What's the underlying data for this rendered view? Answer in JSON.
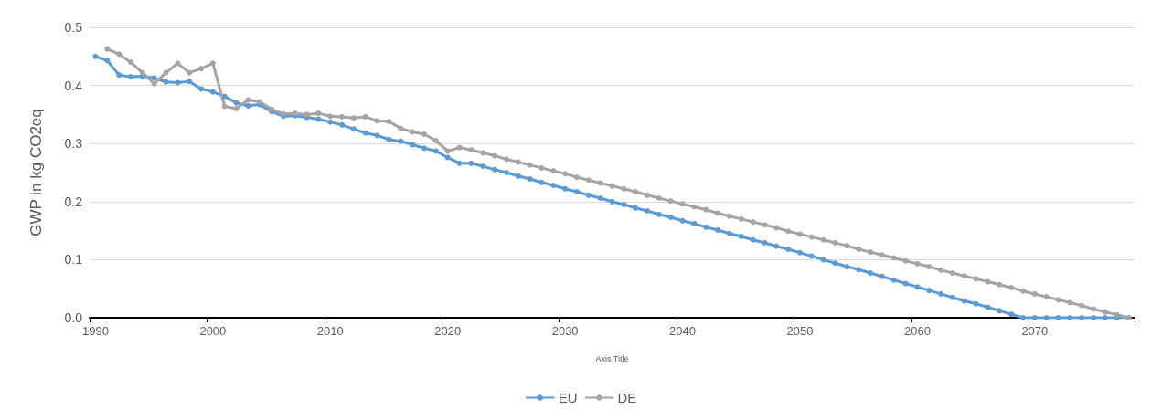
{
  "chart_data": {
    "type": "line",
    "xlabel": "Axis Title",
    "ylabel": "GWP in kg CO2eq",
    "categories": [
      "1990",
      null,
      null,
      null,
      null,
      null,
      null,
      null,
      null,
      null,
      "2000",
      null,
      null,
      null,
      null,
      null,
      null,
      null,
      null,
      null,
      "2010",
      null,
      null,
      null,
      null,
      null,
      null,
      null,
      null,
      null,
      "2020",
      null,
      null,
      null,
      null,
      null,
      null,
      null,
      null,
      null,
      "2030",
      null,
      null,
      null,
      null,
      null,
      null,
      null,
      null,
      null,
      "2040",
      null,
      null,
      null,
      null,
      null,
      null,
      null,
      null,
      null,
      "2050",
      null,
      null,
      null,
      null,
      null,
      null,
      null,
      null,
      null,
      "2060",
      null,
      null,
      null,
      null,
      null,
      null,
      null,
      null,
      null,
      "2070",
      null,
      null,
      null,
      null,
      null,
      null,
      null,
      null
    ],
    "series": [
      {
        "name": "EU",
        "color": "#5b9bd5",
        "values": [
          0.45,
          0.443,
          0.418,
          0.415,
          0.416,
          0.413,
          0.406,
          0.405,
          0.407,
          0.394,
          0.389,
          0.381,
          0.37,
          0.365,
          0.367,
          0.355,
          0.347,
          0.348,
          0.345,
          0.342,
          0.337,
          0.332,
          0.325,
          0.318,
          0.314,
          0.307,
          0.304,
          0.298,
          0.292,
          0.287,
          0.276,
          0.266,
          0.266,
          0.261,
          0.255,
          0.25,
          0.244,
          0.239,
          0.233,
          0.228,
          0.222,
          0.217,
          0.211,
          0.206,
          0.2,
          0.195,
          0.189,
          0.184,
          0.178,
          0.173,
          0.167,
          0.162,
          0.156,
          0.151,
          0.145,
          0.14,
          0.134,
          0.129,
          0.123,
          0.118,
          0.112,
          0.106,
          0.1,
          0.094,
          0.088,
          0.083,
          0.077,
          0.071,
          0.065,
          0.059,
          0.053,
          0.047,
          0.041,
          0.035,
          0.029,
          0.024,
          0.018,
          0.012,
          0.006,
          0,
          0,
          0,
          0,
          0,
          0,
          0,
          0,
          0,
          0
        ]
      },
      {
        "name": "DE",
        "color": "#a5a5a5",
        "values": [
          null,
          0.463,
          0.454,
          0.44,
          0.422,
          0.403,
          0.422,
          0.438,
          0.422,
          0.429,
          0.438,
          0.364,
          0.36,
          0.375,
          0.372,
          0.359,
          0.351,
          0.352,
          0.35,
          0.352,
          0.347,
          0.346,
          0.344,
          0.346,
          0.339,
          0.338,
          0.326,
          0.32,
          0.316,
          0.305,
          0.287,
          0.293,
          0.289,
          0.284,
          0.279,
          0.273,
          0.268,
          0.263,
          0.258,
          0.253,
          0.248,
          0.242,
          0.237,
          0.232,
          0.227,
          0.222,
          0.217,
          0.211,
          0.206,
          0.201,
          0.196,
          0.191,
          0.186,
          0.18,
          0.175,
          0.17,
          0.165,
          0.16,
          0.155,
          0.149,
          0.144,
          0.139,
          0.134,
          0.129,
          0.124,
          0.118,
          0.113,
          0.108,
          0.103,
          0.098,
          0.093,
          0.088,
          0.082,
          0.077,
          0.072,
          0.067,
          0.062,
          0.057,
          0.052,
          0.046,
          0.041,
          0.036,
          0.031,
          0.026,
          0.021,
          0.015,
          0.01,
          0.005,
          0
        ]
      }
    ],
    "ylim": [
      0,
      0.5
    ],
    "yticks": [
      {
        "value": 0,
        "label": "0.0"
      },
      {
        "value": 0.1,
        "label": "0.1"
      },
      {
        "value": 0.2,
        "label": "0.2"
      },
      {
        "value": 0.3,
        "label": "0.3"
      },
      {
        "value": 0.4,
        "label": "0.4"
      },
      {
        "value": 0.5,
        "label": "0.5"
      }
    ],
    "grid": "y",
    "legend": "bottom",
    "marker": "circle",
    "line_style": "solid"
  }
}
